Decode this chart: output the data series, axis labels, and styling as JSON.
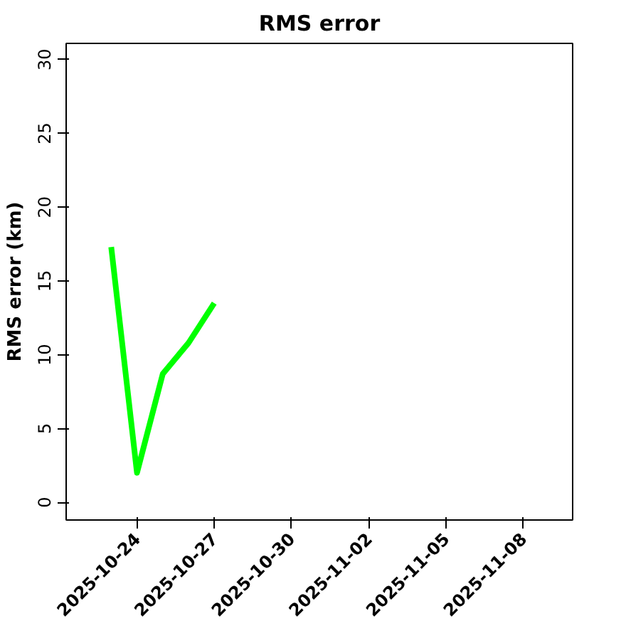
{
  "chart_data": {
    "type": "line",
    "title": "RMS error",
    "ylabel": "RMS error (km)",
    "x": [
      "2025-10-23",
      "2025-10-24",
      "2025-10-25",
      "2025-10-26",
      "2025-10-27"
    ],
    "series": [
      {
        "color": "#00ff00",
        "values": [
          17.3,
          2.0,
          8.7,
          10.8,
          13.5
        ]
      }
    ],
    "xlim": [
      "2025-10-21T06:00",
      "2025-11-09T22:00"
    ],
    "xticks": [
      "2025-10-24",
      "2025-10-27",
      "2025-10-30",
      "2025-11-02",
      "2025-11-05",
      "2025-11-08"
    ],
    "ylim": [
      -1.2,
      31.1
    ],
    "yticks": [
      0,
      5,
      10,
      15,
      20,
      25,
      30
    ],
    "line_style": "solid"
  }
}
